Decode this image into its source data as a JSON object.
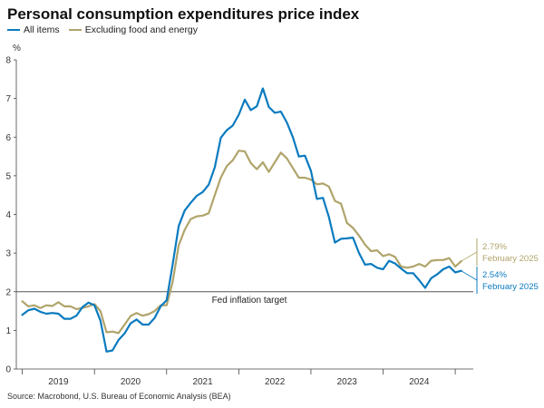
{
  "chart_data": {
    "type": "line",
    "title": "Personal consumption expenditures price index",
    "ylabel": "%",
    "ylim": [
      0,
      8
    ],
    "yticks": [
      "0",
      "1",
      "2",
      "3",
      "4",
      "5",
      "6",
      "7",
      "8"
    ],
    "xlim": [
      2018.917,
      2025.25
    ],
    "year_labels": [
      "2019",
      "2020",
      "2021",
      "2022",
      "2023",
      "2024"
    ],
    "reference_line": {
      "value": 2,
      "label": "Fed inflation target"
    },
    "series": [
      {
        "name": "All items",
        "color": "#0a7bbf",
        "x": [
          2019.0,
          2019.083,
          2019.167,
          2019.25,
          2019.333,
          2019.417,
          2019.5,
          2019.583,
          2019.667,
          2019.75,
          2019.833,
          2019.917,
          2020.0,
          2020.083,
          2020.167,
          2020.25,
          2020.333,
          2020.417,
          2020.5,
          2020.583,
          2020.667,
          2020.75,
          2020.833,
          2020.917,
          2021.0,
          2021.083,
          2021.167,
          2021.25,
          2021.333,
          2021.417,
          2021.5,
          2021.583,
          2021.667,
          2021.75,
          2021.833,
          2021.917,
          2022.0,
          2022.083,
          2022.167,
          2022.25,
          2022.333,
          2022.417,
          2022.5,
          2022.583,
          2022.667,
          2022.75,
          2022.833,
          2022.917,
          2023.0,
          2023.083,
          2023.167,
          2023.25,
          2023.333,
          2023.417,
          2023.5,
          2023.583,
          2023.667,
          2023.75,
          2023.833,
          2023.917,
          2024.0,
          2024.083,
          2024.167,
          2024.25,
          2024.333,
          2024.417,
          2024.5,
          2024.583,
          2024.667,
          2024.75,
          2024.833,
          2024.917,
          2025.0,
          2025.083
        ],
        "values": [
          1.4,
          1.52,
          1.56,
          1.48,
          1.43,
          1.45,
          1.43,
          1.3,
          1.3,
          1.38,
          1.6,
          1.72,
          1.65,
          1.25,
          0.45,
          0.48,
          0.75,
          0.92,
          1.18,
          1.28,
          1.15,
          1.15,
          1.32,
          1.62,
          1.78,
          2.7,
          3.7,
          4.1,
          4.3,
          4.48,
          4.58,
          4.77,
          5.22,
          5.98,
          6.18,
          6.3,
          6.58,
          6.97,
          6.7,
          6.8,
          7.26,
          6.78,
          6.63,
          6.66,
          6.38,
          6.0,
          5.5,
          5.52,
          5.13,
          4.4,
          4.43,
          3.93,
          3.27,
          3.37,
          3.38,
          3.4,
          3.0,
          2.7,
          2.72,
          2.62,
          2.58,
          2.8,
          2.73,
          2.6,
          2.48,
          2.48,
          2.3,
          2.1,
          2.35,
          2.45,
          2.58,
          2.65,
          2.5,
          2.54
        ]
      },
      {
        "name": "Excluding food and energy",
        "color": "#b0a46b",
        "x": [
          2019.0,
          2019.083,
          2019.167,
          2019.25,
          2019.333,
          2019.417,
          2019.5,
          2019.583,
          2019.667,
          2019.75,
          2019.833,
          2019.917,
          2020.0,
          2020.083,
          2020.167,
          2020.25,
          2020.333,
          2020.417,
          2020.5,
          2020.583,
          2020.667,
          2020.75,
          2020.833,
          2020.917,
          2021.0,
          2021.083,
          2021.167,
          2021.25,
          2021.333,
          2021.417,
          2021.5,
          2021.583,
          2021.667,
          2021.75,
          2021.833,
          2021.917,
          2022.0,
          2022.083,
          2022.167,
          2022.25,
          2022.333,
          2022.417,
          2022.5,
          2022.583,
          2022.667,
          2022.75,
          2022.833,
          2022.917,
          2023.0,
          2023.083,
          2023.167,
          2023.25,
          2023.333,
          2023.417,
          2023.5,
          2023.583,
          2023.667,
          2023.75,
          2023.833,
          2023.917,
          2024.0,
          2024.083,
          2024.167,
          2024.25,
          2024.333,
          2024.417,
          2024.5,
          2024.583,
          2024.667,
          2024.75,
          2024.833,
          2024.917,
          2025.0,
          2025.083
        ],
        "values": [
          1.75,
          1.62,
          1.65,
          1.58,
          1.65,
          1.63,
          1.73,
          1.62,
          1.62,
          1.55,
          1.58,
          1.62,
          1.68,
          1.5,
          0.95,
          0.97,
          0.93,
          1.15,
          1.37,
          1.45,
          1.38,
          1.42,
          1.5,
          1.65,
          1.65,
          2.25,
          3.2,
          3.6,
          3.88,
          3.95,
          3.97,
          4.03,
          4.5,
          4.95,
          5.25,
          5.4,
          5.65,
          5.63,
          5.33,
          5.17,
          5.35,
          5.1,
          5.35,
          5.6,
          5.45,
          5.2,
          4.95,
          4.95,
          4.9,
          4.78,
          4.8,
          4.72,
          4.35,
          4.28,
          3.78,
          3.65,
          3.45,
          3.22,
          3.05,
          3.07,
          2.92,
          2.97,
          2.9,
          2.65,
          2.62,
          2.65,
          2.72,
          2.65,
          2.8,
          2.82,
          2.82,
          2.87,
          2.65,
          2.79
        ]
      }
    ],
    "annotations": [
      {
        "series": "Excluding food and energy",
        "value_text": "2.79%",
        "date_text": "February 2025"
      },
      {
        "series": "All items",
        "value_text": "2.54%",
        "date_text": "February 2025"
      }
    ],
    "source": "Source: Macrobond, U.S. Bureau of Economic Analysis (BEA)",
    "grid": false,
    "legend_position": "top-left"
  }
}
